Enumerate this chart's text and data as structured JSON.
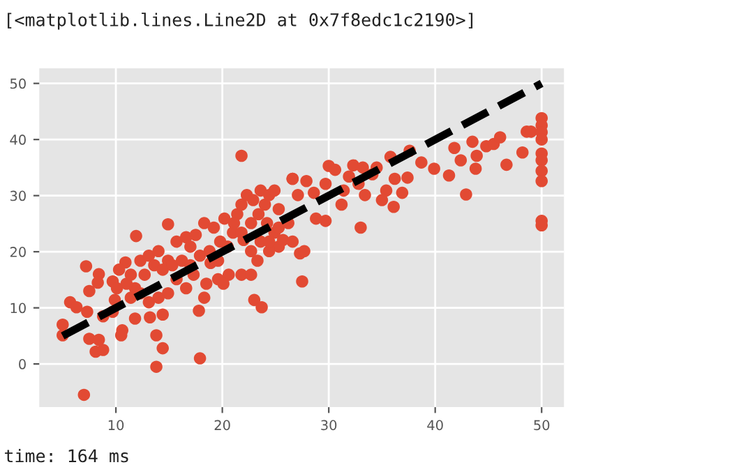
{
  "chart_data": {
    "type": "scatter",
    "xlim": [
      2.8,
      52.1
    ],
    "ylim": [
      -7.7,
      52.7
    ],
    "xticks": [
      10,
      20,
      30,
      40,
      50
    ],
    "yticks": [
      0,
      10,
      20,
      30,
      40,
      50
    ],
    "grid": true,
    "legend": false,
    "annotations": [
      "[<matplotlib.lines.Line2D at 0x7f8edc1c2190>]",
      "time: 164 ms"
    ],
    "series": [
      {
        "marker": "circle",
        "color": "#e24a33",
        "x": [
          5.0,
          5.0,
          5.7,
          6.3,
          7.2,
          7.0,
          7.3,
          7.5,
          7.5,
          8.1,
          8.8,
          8.4,
          8.4,
          8.3,
          9.7,
          9.7,
          10.6,
          10.5,
          10.9,
          11.9,
          11.8,
          11.8,
          13.2,
          13.8,
          14.4,
          13.8,
          14.9,
          14.4,
          17.8,
          17.9,
          21.8,
          23.0,
          23.7,
          21.8,
          27.5,
          27.3,
          27.7,
          33.0,
          42.9,
          46.7,
          30.0,
          32.3,
          35.8,
          37.6,
          38.7,
          39.9,
          41.8,
          41.3,
          42.4,
          43.5,
          43.9,
          43.8,
          44.8,
          45.5,
          46.1,
          48.2,
          48.6,
          49.0,
          50,
          50,
          50,
          50,
          50,
          50,
          50,
          50,
          50,
          50,
          36.1,
          35.0,
          36.9,
          37.4,
          36.2,
          35.4,
          31.2,
          29.7,
          28.8,
          31.4,
          31.9,
          32.8,
          33.4,
          28.6,
          26.6,
          27.9,
          29.7,
          30.6,
          33.2,
          34.1,
          34.5,
          12.3,
          13.1,
          14.0,
          14.9,
          15.7,
          16.6,
          17.0,
          17.5,
          18.3,
          19.2,
          18.8,
          19.6,
          20.5,
          21.0,
          21.4,
          21.8,
          22.3,
          22.9,
          23.6,
          24.0,
          24.4,
          24.9,
          25.3,
          22.7,
          21.8,
          23.4,
          24.2,
          24.9,
          25.3,
          24.4,
          23.3,
          22.7,
          20.6,
          19.6,
          18.5,
          17.3,
          16.6,
          15.7,
          14.9,
          14.0,
          13.1,
          12.3,
          11.4,
          11.0,
          10.1,
          10.3,
          11.4,
          12.7,
          13.6,
          14.4,
          15.3,
          16.2,
          17.0,
          17.9,
          18.9,
          19.8,
          20.2,
          21.1,
          22.0,
          22.7,
          23.6,
          24.4,
          25.3,
          25.7,
          26.2,
          26.6,
          27.1,
          26.6,
          18.3,
          20.1,
          8.8,
          9.9
        ],
        "values": [
          7.0,
          5.1,
          11.0,
          10.1,
          17.4,
          -5.5,
          9.3,
          4.5,
          13.0,
          2.2,
          2.5,
          4.3,
          16.0,
          14.5,
          14.7,
          9.3,
          6.0,
          5.1,
          18.1,
          22.8,
          8.1,
          13.5,
          8.3,
          5.1,
          2.8,
          -0.5,
          24.9,
          8.8,
          9.5,
          1.0,
          37.1,
          11.4,
          10.1,
          15.9,
          14.7,
          19.7,
          20.1,
          24.3,
          30.2,
          35.5,
          35.3,
          35.4,
          36.9,
          38.0,
          35.9,
          34.8,
          38.5,
          33.6,
          36.3,
          39.6,
          37.1,
          34.8,
          38.8,
          39.2,
          40.4,
          37.7,
          41.4,
          41.4,
          43.8,
          42.5,
          41.3,
          40.0,
          37.5,
          36.3,
          34.4,
          32.6,
          25.5,
          24.7,
          28.0,
          29.2,
          30.5,
          33.2,
          33.0,
          30.9,
          28.4,
          25.5,
          25.9,
          30.9,
          33.4,
          32.1,
          30.1,
          30.5,
          33.0,
          32.6,
          32.1,
          34.6,
          35.0,
          33.8,
          35.0,
          18.4,
          19.3,
          20.1,
          18.4,
          21.8,
          22.6,
          20.9,
          23.0,
          25.1,
          24.3,
          20.1,
          18.4,
          20.9,
          23.4,
          26.7,
          28.4,
          30.1,
          29.2,
          30.9,
          28.4,
          30.1,
          30.9,
          27.6,
          25.1,
          23.4,
          26.7,
          25.1,
          23.4,
          20.9,
          20.1,
          18.4,
          15.9,
          15.9,
          15.1,
          14.3,
          15.9,
          13.5,
          15.1,
          12.6,
          11.8,
          11.0,
          12.6,
          11.8,
          14.3,
          13.5,
          16.8,
          15.9,
          15.9,
          17.6,
          16.8,
          17.6,
          18.4,
          17.6,
          19.3,
          18.0,
          21.8,
          25.9,
          25.1,
          22.1,
          20.1,
          21.8,
          21.8,
          24.3,
          22.1,
          25.1,
          33.0,
          30.1,
          21.8,
          11.8,
          14.3,
          8.5,
          11.4
        ]
      },
      {
        "type": "line",
        "color": "#000000",
        "line_style": "dashed",
        "marker": "none",
        "x": [
          5,
          50
        ],
        "values": [
          5,
          50
        ]
      }
    ]
  }
}
